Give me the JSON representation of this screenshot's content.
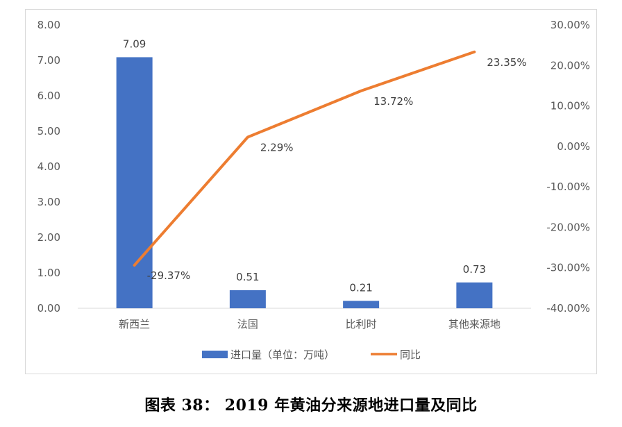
{
  "caption": "图表 38：  2019 年黄油分来源地进口量及同比",
  "chart_data": {
    "type": "bar",
    "categories": [
      "新西兰",
      "法国",
      "比利时",
      "其他来源地"
    ],
    "series": [
      {
        "name": "进口量（单位：万吨）",
        "type": "bar",
        "axis": "left",
        "color": "#4472C4",
        "values": [
          7.09,
          0.51,
          0.21,
          0.73
        ],
        "labels": [
          "7.09",
          "0.51",
          "0.21",
          "0.73"
        ]
      },
      {
        "name": "同比",
        "type": "line",
        "axis": "right",
        "color": "#ED7D31",
        "values": [
          -29.37,
          2.29,
          13.72,
          23.35
        ],
        "labels": [
          "-29.37%",
          "2.29%",
          "13.72%",
          "23.35%"
        ]
      }
    ],
    "y_left": {
      "ylim": [
        0,
        8
      ],
      "ticks": [
        "0.00",
        "1.00",
        "2.00",
        "3.00",
        "4.00",
        "5.00",
        "6.00",
        "7.00",
        "8.00"
      ]
    },
    "y_right": {
      "ylim": [
        -40,
        30
      ],
      "ticks": [
        "-40.00%",
        "-30.00%",
        "-20.00%",
        "-10.00%",
        "0.00%",
        "10.00%",
        "20.00%",
        "30.00%"
      ]
    },
    "grid": false,
    "legend_position": "bottom"
  }
}
